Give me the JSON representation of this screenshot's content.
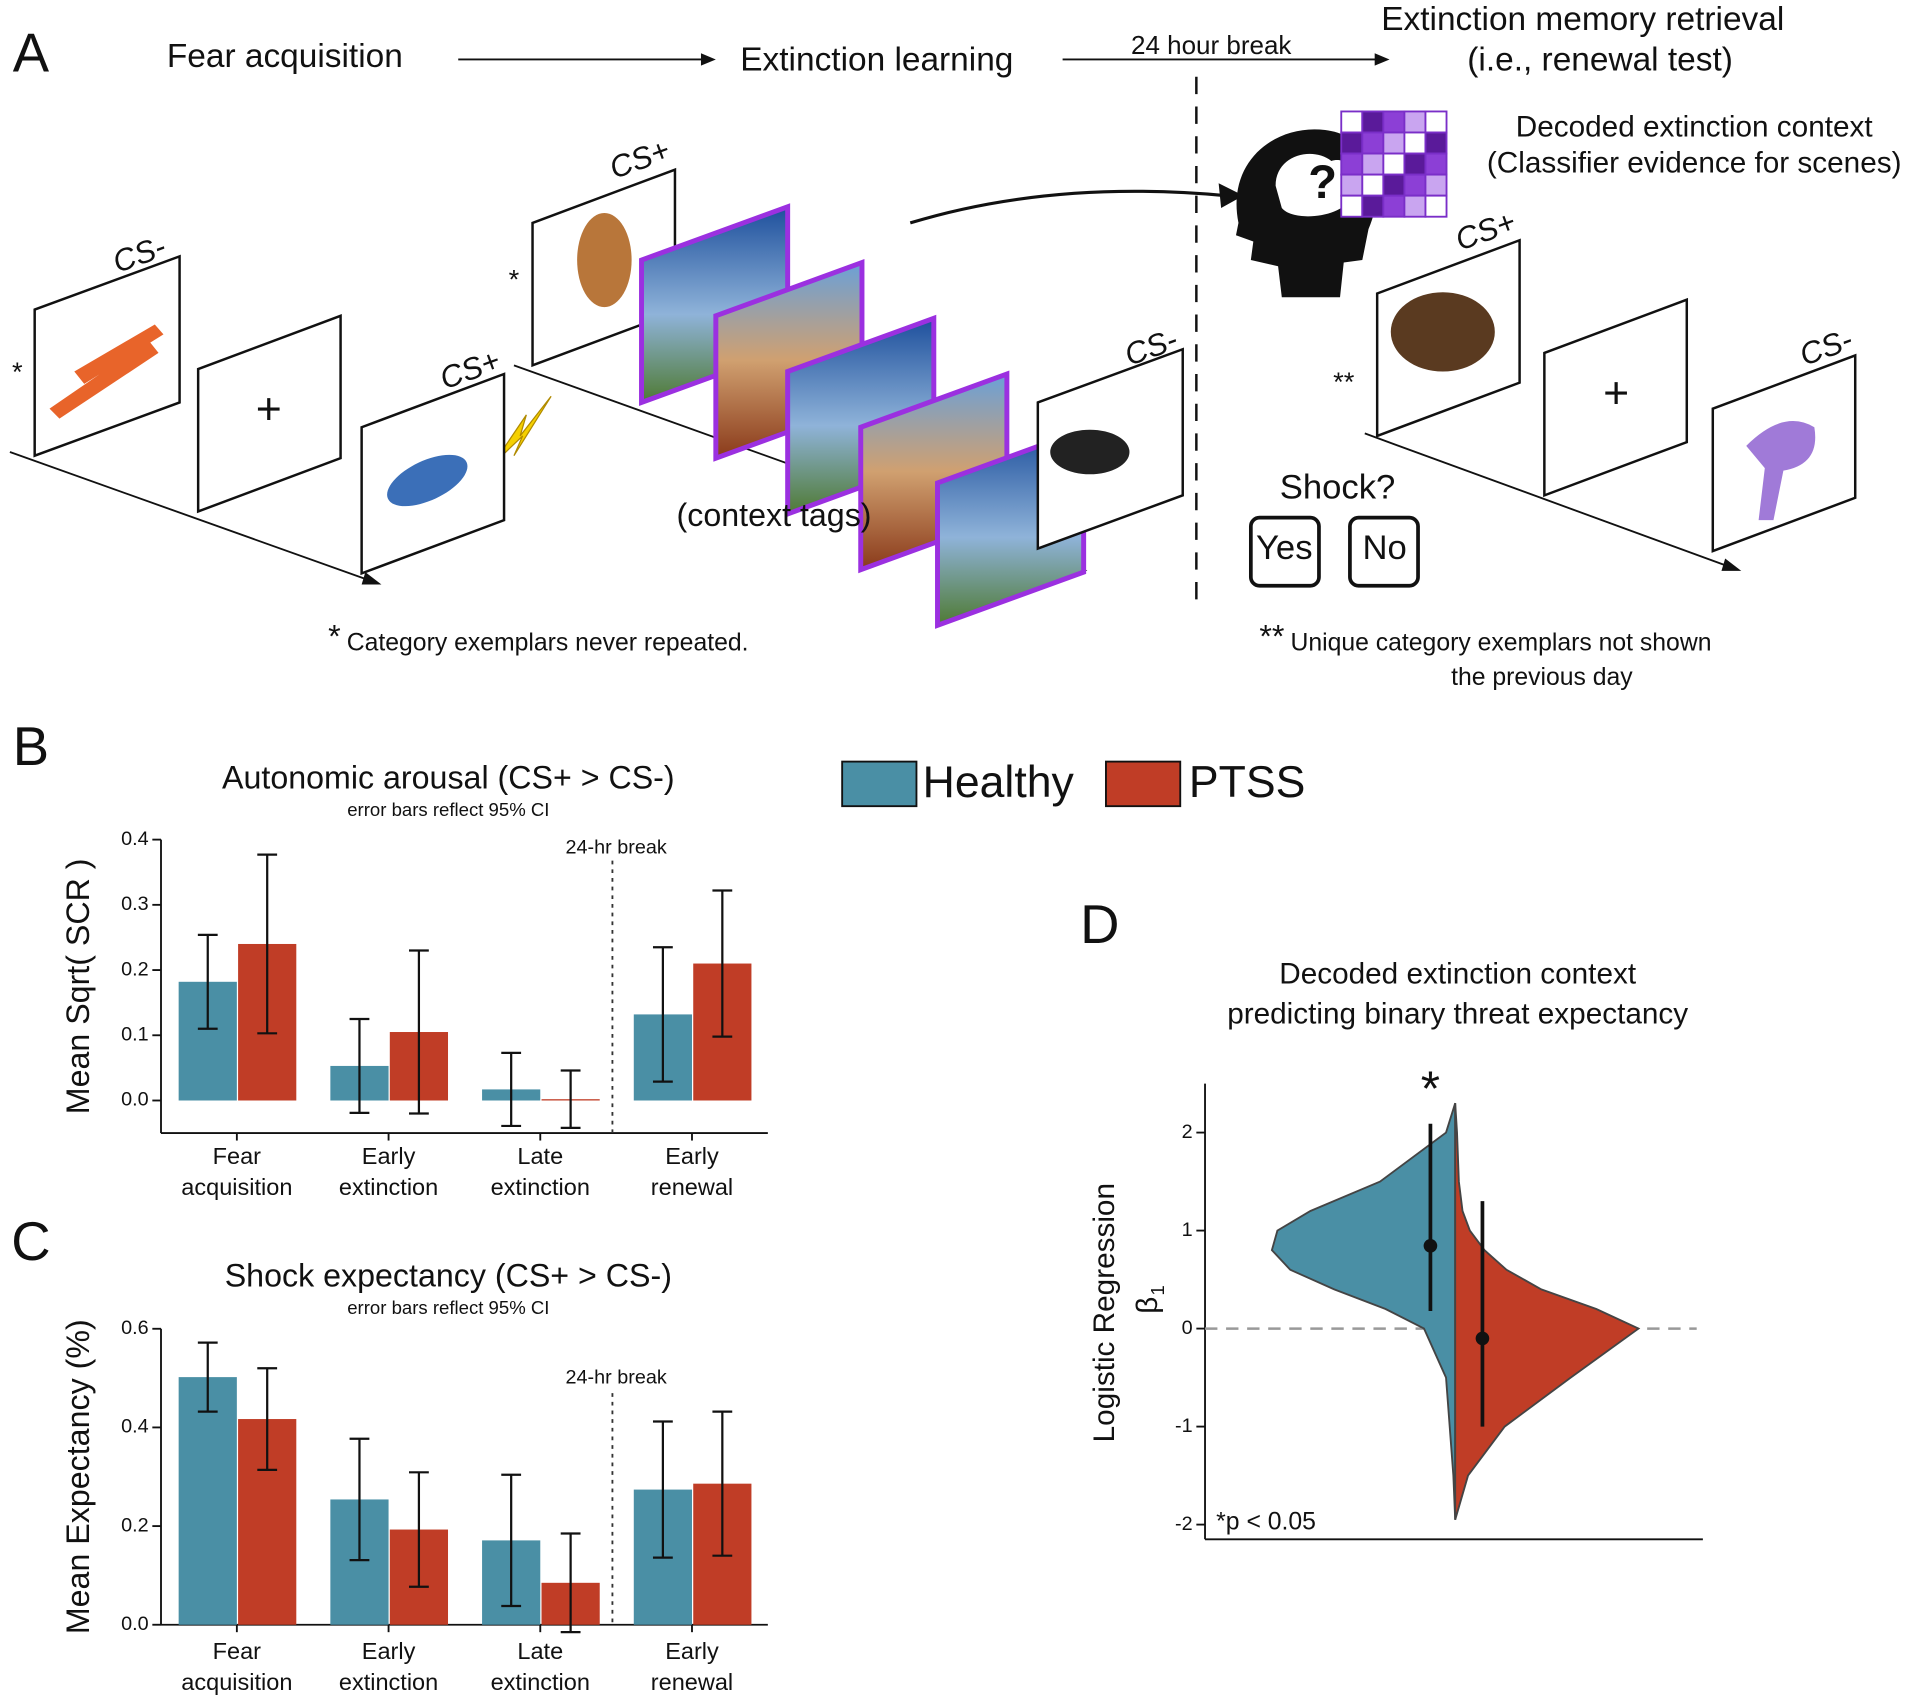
{
  "panel_labels": [
    "A",
    "B",
    "C",
    "D"
  ],
  "schematic": {
    "stages": [
      "Fear acquisition",
      "Extinction learning",
      "Extinction memory retrieval",
      "(i.e., renewal test)"
    ],
    "break_label": "24 hour break",
    "decoded": [
      "Decoded extinction context",
      "(Classifier evidence for scenes)"
    ],
    "stimulus_labels": [
      "CS-",
      "CS+",
      "CS+",
      "CS-",
      "CS+",
      "CS-"
    ],
    "fixation": [
      "+",
      "+"
    ],
    "stars": [
      "*",
      "*",
      "**"
    ],
    "context_tags": "(context tags)",
    "question": "?",
    "shock_prompt": "Shock?",
    "responses": [
      "Yes",
      "No"
    ],
    "note1": {
      "mark": "*",
      "text": "Category exemplars never repeated."
    },
    "note2": {
      "mark": "**",
      "lines": [
        "Unique category exemplars not shown",
        "the previous day"
      ]
    }
  },
  "chart_data": [
    {
      "type": "bar",
      "title": "Autonomic arousal (CS+ > CS-)",
      "subtitle": "error bars reflect 95% CI",
      "ylabel": "Mean Sqrt( SCR )",
      "annotation": "24-hr break",
      "categories": [
        "Fear acquisition",
        "Early extinction",
        "Late extinction",
        "Early renewal"
      ],
      "series": [
        {
          "name": "Healthy",
          "color": "#4a8fa5",
          "values": [
            0.182,
            0.053,
            0.017,
            0.132
          ],
          "errors": [
            0.072,
            0.072,
            0.056,
            0.103
          ]
        },
        {
          "name": "PTSS",
          "color": "#c03d26",
          "values": [
            0.24,
            0.105,
            0.002,
            0.21
          ],
          "errors": [
            0.137,
            0.125,
            0.044,
            0.112
          ]
        }
      ],
      "ylim": [
        -0.05,
        0.4
      ],
      "yticks": [
        {
          "value": 0,
          "label": "0.0"
        },
        0.1,
        0.2,
        0.3,
        0.4
      ]
    },
    {
      "type": "bar",
      "title": "Shock expectancy (CS+ > CS-)",
      "subtitle": "error bars reflect 95% CI",
      "ylabel": "Mean Expectancy (%)",
      "annotation": "24-hr break",
      "categories": [
        "Fear acquisition",
        "Early extinction",
        "Late extinction",
        "Early renewal"
      ],
      "series": [
        {
          "color": "#4a8fa5",
          "values": [
            0.502,
            0.254,
            0.171,
            0.274
          ],
          "errors": [
            0.07,
            0.123,
            0.133,
            0.138
          ]
        },
        {
          "color": "#c03d26",
          "values": [
            0.417,
            0.193,
            0.085,
            0.286
          ],
          "errors": [
            0.103,
            0.116,
            0.1,
            0.146
          ]
        }
      ],
      "ylim": [
        0,
        0.6
      ],
      "yticks": [
        {
          "value": 0,
          "label": "0.0"
        },
        {
          "value": 0.2,
          "label": "0.2"
        },
        {
          "value": 0.4,
          "label": "0.4"
        },
        {
          "value": 0.6,
          "label": "0.6"
        }
      ]
    },
    {
      "type": "violin",
      "title": [
        "Decoded extinction context",
        "predicting binary threat expectancy"
      ],
      "ylabel": "Logistic Regression",
      "ylabel_symbol": "β",
      "ylabel_subscript": "1",
      "annotation": "*",
      "footnote": "*p < 0.05",
      "density_y": [
        2.3,
        2.0,
        1.5,
        1.2,
        1.0,
        0.8,
        0.6,
        0.4,
        0.2,
        0,
        -0.5,
        -1,
        -1.5,
        -1.95
      ],
      "series": [
        {
          "color": "#4a8fa5",
          "density": [
            0,
            0.05,
            0.41,
            0.79,
            0.97,
            1.0,
            0.9,
            0.66,
            0.38,
            0.17,
            0.05,
            0.03,
            0.01,
            0
          ],
          "values": 0.845,
          "ci": [
            0.18,
            2.09
          ]
        },
        {
          "color": "#c03d26",
          "density": [
            0,
            0.01,
            0.02,
            0.04,
            0.08,
            0.16,
            0.28,
            0.47,
            0.77,
            1.0,
            0.63,
            0.27,
            0.07,
            0
          ],
          "values": -0.1,
          "ci": [
            -1.0,
            1.3
          ]
        }
      ],
      "ylim": [
        -2.15,
        2.5
      ],
      "yticks": [
        -2,
        -1,
        0,
        1,
        2
      ]
    }
  ]
}
